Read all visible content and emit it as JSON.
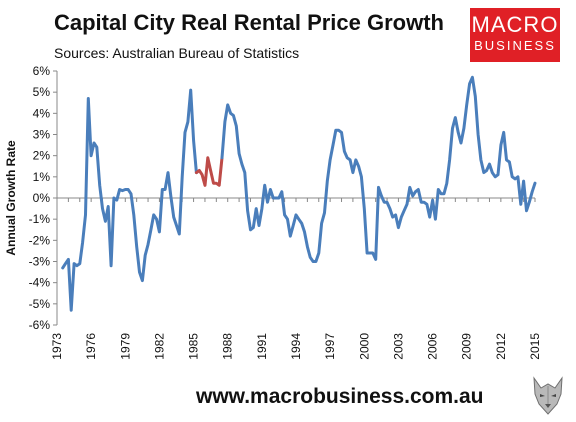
{
  "header": {
    "title": "Capital City Real Rental Price Growth",
    "subtitle": "Sources: Australian Bureau of Statistics",
    "logo_line1": "MACRO",
    "logo_line2": "BUSINESS"
  },
  "footer": {
    "url": "www.macrobusiness.com.au"
  },
  "colors": {
    "primary_series": "#4a7ebb",
    "highlight_series": "#be4b48",
    "brand": "#e02026"
  },
  "chart_data": {
    "type": "line",
    "title": "Capital City Real Rental Price Growth",
    "ylabel": "Annual Growth Rate",
    "xlabel": "",
    "xlim": [
      1973,
      2015
    ],
    "ylim": [
      -6,
      6
    ],
    "yticks": [
      "6%",
      "5%",
      "4%",
      "3%",
      "2%",
      "1%",
      "0%",
      "-1%",
      "-2%",
      "-3%",
      "-4%",
      "-5%",
      "-6%"
    ],
    "xticks": [
      "1973",
      "1976",
      "1979",
      "1982",
      "1985",
      "1988",
      "1991",
      "1994",
      "1997",
      "2000",
      "2003",
      "2006",
      "2009",
      "2012",
      "2015"
    ],
    "grid": false,
    "legend": "none",
    "series": [
      {
        "values": [
          [
            1973.5,
            -3.3
          ],
          [
            1973.75,
            -3.1
          ],
          [
            1974.0,
            -2.9
          ],
          [
            1974.25,
            -5.3
          ],
          [
            1974.5,
            -3.1
          ],
          [
            1974.75,
            -3.2
          ],
          [
            1975.0,
            -3.1
          ],
          [
            1975.25,
            -2.1
          ],
          [
            1975.5,
            -0.8
          ],
          [
            1975.75,
            4.7
          ],
          [
            1976.0,
            2.0
          ],
          [
            1976.25,
            2.6
          ],
          [
            1976.5,
            2.4
          ],
          [
            1976.75,
            0.6
          ],
          [
            1977.0,
            -0.5
          ],
          [
            1977.25,
            -1.1
          ],
          [
            1977.5,
            -0.4
          ],
          [
            1977.75,
            -3.2
          ],
          [
            1978.0,
            0.0
          ],
          [
            1978.25,
            -0.1
          ],
          [
            1978.5,
            0.4
          ],
          [
            1978.75,
            0.35
          ],
          [
            1979.0,
            0.4
          ],
          [
            1979.25,
            0.4
          ],
          [
            1979.5,
            0.2
          ],
          [
            1979.75,
            -0.8
          ],
          [
            1980.0,
            -2.3
          ],
          [
            1980.25,
            -3.5
          ],
          [
            1980.5,
            -3.9
          ],
          [
            1980.75,
            -2.7
          ],
          [
            1981.0,
            -2.2
          ],
          [
            1981.25,
            -1.5
          ],
          [
            1981.5,
            -0.8
          ],
          [
            1981.75,
            -1.0
          ],
          [
            1982.0,
            -1.6
          ],
          [
            1982.25,
            0.4
          ],
          [
            1982.5,
            0.4
          ],
          [
            1982.75,
            1.2
          ],
          [
            1983.0,
            0.1
          ],
          [
            1983.25,
            -0.9
          ],
          [
            1983.5,
            -1.3
          ],
          [
            1983.75,
            -1.7
          ],
          [
            1984.0,
            1.0
          ],
          [
            1984.25,
            3.1
          ],
          [
            1984.5,
            3.6
          ],
          [
            1984.75,
            5.1
          ],
          [
            1985.0,
            2.7
          ],
          [
            1985.25,
            1.2
          ]
        ]
      },
      {
        "values": [
          [
            1985.25,
            1.2
          ],
          [
            1985.5,
            1.3
          ],
          [
            1985.75,
            1.1
          ],
          [
            1986.0,
            0.6
          ],
          [
            1986.25,
            1.9
          ],
          [
            1986.5,
            1.3
          ],
          [
            1986.75,
            0.7
          ],
          [
            1987.0,
            0.7
          ],
          [
            1987.25,
            0.6
          ],
          [
            1987.5,
            1.9
          ]
        ]
      },
      {
        "values": [
          [
            1987.5,
            1.9
          ],
          [
            1987.75,
            3.6
          ],
          [
            1988.0,
            4.4
          ],
          [
            1988.25,
            4.0
          ],
          [
            1988.5,
            3.9
          ],
          [
            1988.75,
            3.4
          ],
          [
            1989.0,
            2.1
          ],
          [
            1989.25,
            1.6
          ],
          [
            1989.5,
            1.2
          ],
          [
            1989.75,
            -0.6
          ],
          [
            1990.0,
            -1.5
          ],
          [
            1990.25,
            -1.4
          ],
          [
            1990.5,
            -0.5
          ],
          [
            1990.75,
            -1.3
          ],
          [
            1991.0,
            -0.5
          ],
          [
            1991.25,
            0.6
          ],
          [
            1991.5,
            -0.2
          ],
          [
            1991.75,
            0.4
          ],
          [
            1992.0,
            0.0
          ],
          [
            1992.25,
            0.0
          ],
          [
            1992.5,
            0.0
          ],
          [
            1992.75,
            0.3
          ],
          [
            1993.0,
            -0.8
          ],
          [
            1993.25,
            -1.0
          ],
          [
            1993.5,
            -1.8
          ],
          [
            1993.75,
            -1.3
          ],
          [
            1994.0,
            -0.8
          ],
          [
            1994.25,
            -1.0
          ],
          [
            1994.5,
            -1.2
          ],
          [
            1994.75,
            -1.6
          ],
          [
            1995.0,
            -2.3
          ],
          [
            1995.25,
            -2.8
          ],
          [
            1995.5,
            -3.0
          ],
          [
            1995.75,
            -3.0
          ],
          [
            1996.0,
            -2.6
          ],
          [
            1996.25,
            -1.2
          ],
          [
            1996.5,
            -0.7
          ],
          [
            1996.75,
            0.8
          ],
          [
            1997.0,
            1.8
          ],
          [
            1997.25,
            2.5
          ],
          [
            1997.5,
            3.2
          ],
          [
            1997.75,
            3.2
          ],
          [
            1998.0,
            3.1
          ],
          [
            1998.25,
            2.2
          ],
          [
            1998.5,
            1.9
          ],
          [
            1998.75,
            1.8
          ],
          [
            1999.0,
            1.2
          ],
          [
            1999.25,
            1.8
          ],
          [
            1999.5,
            1.5
          ],
          [
            1999.75,
            1.0
          ],
          [
            2000.0,
            -0.5
          ],
          [
            2000.25,
            -2.6
          ],
          [
            2000.5,
            -2.6
          ],
          [
            2000.75,
            -2.6
          ],
          [
            2001.0,
            -2.9
          ],
          [
            2001.25,
            0.5
          ],
          [
            2001.5,
            0.1
          ],
          [
            2001.75,
            -0.2
          ],
          [
            2002.0,
            -0.2
          ],
          [
            2002.25,
            -0.5
          ],
          [
            2002.5,
            -0.9
          ],
          [
            2002.75,
            -0.8
          ],
          [
            2003.0,
            -1.4
          ],
          [
            2003.25,
            -0.9
          ],
          [
            2003.5,
            -0.6
          ],
          [
            2003.75,
            -0.3
          ],
          [
            2004.0,
            0.5
          ],
          [
            2004.25,
            0.1
          ],
          [
            2004.5,
            0.3
          ],
          [
            2004.75,
            0.4
          ],
          [
            2005.0,
            -0.2
          ],
          [
            2005.25,
            -0.2
          ],
          [
            2005.5,
            -0.3
          ],
          [
            2005.75,
            -0.9
          ],
          [
            2006.0,
            -0.1
          ],
          [
            2006.25,
            -1.0
          ],
          [
            2006.5,
            0.4
          ],
          [
            2006.75,
            0.2
          ],
          [
            2007.0,
            0.2
          ],
          [
            2007.25,
            0.7
          ],
          [
            2007.5,
            1.8
          ],
          [
            2007.75,
            3.3
          ],
          [
            2008.0,
            3.8
          ],
          [
            2008.25,
            3.1
          ],
          [
            2008.5,
            2.6
          ],
          [
            2008.75,
            3.3
          ],
          [
            2009.0,
            4.4
          ],
          [
            2009.25,
            5.4
          ],
          [
            2009.5,
            5.7
          ],
          [
            2009.75,
            4.8
          ],
          [
            2010.0,
            3.0
          ],
          [
            2010.25,
            1.8
          ],
          [
            2010.5,
            1.2
          ],
          [
            2010.75,
            1.3
          ],
          [
            2011.0,
            1.6
          ],
          [
            2011.25,
            1.2
          ],
          [
            2011.5,
            1.0
          ],
          [
            2011.75,
            1.1
          ],
          [
            2012.0,
            2.5
          ],
          [
            2012.25,
            3.1
          ],
          [
            2012.5,
            1.8
          ],
          [
            2012.75,
            1.7
          ],
          [
            2013.0,
            1.0
          ],
          [
            2013.25,
            0.9
          ],
          [
            2013.5,
            1.0
          ],
          [
            2013.75,
            -0.3
          ],
          [
            2014.0,
            0.8
          ],
          [
            2014.25,
            -0.6
          ],
          [
            2014.5,
            -0.2
          ],
          [
            2014.75,
            0.3
          ],
          [
            2015.0,
            0.7
          ]
        ]
      }
    ]
  }
}
